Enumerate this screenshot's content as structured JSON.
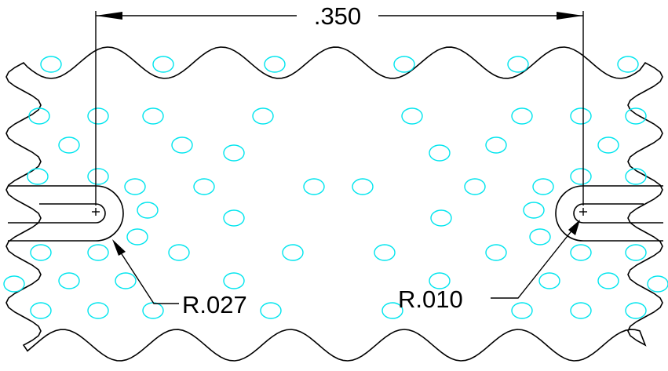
{
  "dimensions": {
    "overall_width": ".350",
    "left_radius": "R.027",
    "right_radius": "R.010"
  },
  "colors": {
    "outline": "#000000",
    "holes": "#00e5ee",
    "background": "#ffffff"
  }
}
